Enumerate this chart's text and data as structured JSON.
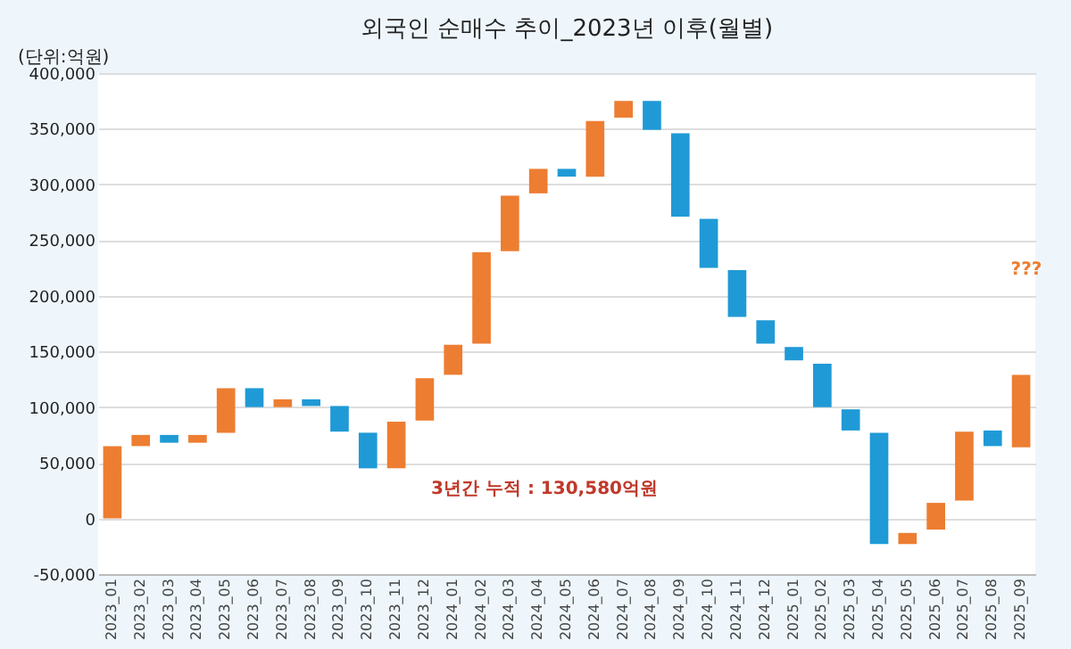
{
  "chart_data": {
    "type": "bar",
    "title": "외국인 순매수 추이_2023년 이후(월별)",
    "categories": [
      "2023_01",
      "2023_02",
      "2023_03",
      "2023_04",
      "2023_05",
      "2023_06",
      "2023_07",
      "2023_08",
      "2023_09",
      "2023_10",
      "2023_11",
      "2023_12",
      "2024_01",
      "2024_02",
      "2024_03",
      "2024_04",
      "2024_05",
      "2024_06",
      "2024_07",
      "2024_08",
      "2024_09",
      "2024_10",
      "2024_11",
      "2024_12",
      "2025_01",
      "2025_02",
      "2025_03",
      "2025_04",
      "2025_05",
      "2025_06",
      "2025_07",
      "2025_08",
      "2025_09"
    ],
    "base": [
      0,
      65000,
      75000,
      68000,
      77000,
      117000,
      100000,
      107000,
      101000,
      77000,
      45000,
      88000,
      129000,
      157000,
      240000,
      292000,
      314000,
      307000,
      360000,
      375000,
      346000,
      269000,
      223000,
      178000,
      154000,
      139000,
      98000,
      77000,
      -23000,
      -10000,
      16000,
      79000,
      64000
    ],
    "values": [
      65000,
      10000,
      -7000,
      7000,
      40000,
      -17000,
      7000,
      -6000,
      -23000,
      -32000,
      42000,
      38000,
      27000,
      82000,
      50000,
      22000,
      -7000,
      50000,
      15000,
      -26000,
      -75000,
      -44000,
      -42000,
      -21000,
      -12000,
      -39000,
      -19000,
      -100000,
      10000,
      24000,
      62000,
      -14000,
      65000
    ],
    "colors": [
      "#ed7d31",
      "#ed7d31",
      "#1f9ad6",
      "#ed7d31",
      "#ed7d31",
      "#1f9ad6",
      "#ed7d31",
      "#1f9ad6",
      "#1f9ad6",
      "#1f9ad6",
      "#ed7d31",
      "#ed7d31",
      "#ed7d31",
      "#ed7d31",
      "#ed7d31",
      "#ed7d31",
      "#1f9ad6",
      "#ed7d31",
      "#ed7d31",
      "#1f9ad6",
      "#1f9ad6",
      "#1f9ad6",
      "#1f9ad6",
      "#1f9ad6",
      "#1f9ad6",
      "#1f9ad6",
      "#1f9ad6",
      "#1f9ad6",
      "#ed7d31",
      "#ed7d31",
      "#ed7d31",
      "#1f9ad6",
      "#ed7d31"
    ],
    "ylim": [
      -50000,
      400000
    ],
    "yticks": [
      {
        "value": -50000,
        "label": "-50,000"
      },
      0,
      {
        "value": 50000,
        "label": "50,000"
      },
      {
        "value": 100000,
        "label": "100,000"
      },
      {
        "value": 150000,
        "label": "150,000"
      },
      {
        "value": 200000,
        "label": "200,000"
      },
      {
        "value": 250000,
        "label": "250,000"
      },
      {
        "value": 300000,
        "label": "300,000"
      },
      {
        "value": 350000,
        "label": "350,000"
      },
      {
        "value": 400000,
        "label": "400,000"
      }
    ],
    "grid": "y",
    "annotations": [
      "(단위:억원)",
      "3년간 누적 : 130,580억원",
      "???"
    ]
  }
}
